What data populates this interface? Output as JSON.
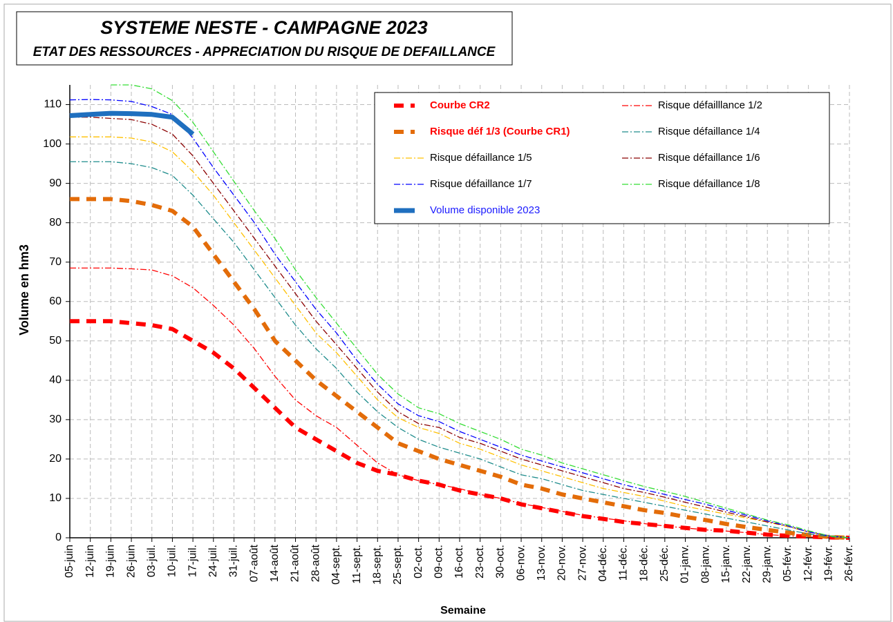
{
  "chart_data": {
    "type": "line",
    "title": "SYSTEME NESTE - CAMPAGNE  2023",
    "subtitle": "ETAT DES RESSOURCES - APPRECIATION DU RISQUE DE DEFAILLANCE",
    "y_label": "Volume en hm3",
    "x_label": "Semaine",
    "categories": [
      "05-juin",
      "12-juin",
      "19-juin",
      "26-juin",
      "03-juil.",
      "10-juil.",
      "17-juil.",
      "24-juil.",
      "31-juil.",
      "07-août",
      "14-août",
      "21-août",
      "28-août",
      "04-sept.",
      "11-sept.",
      "18-sept.",
      "25-sept.",
      "02-oct.",
      "09-oct.",
      "16-oct.",
      "23-oct.",
      "30-oct.",
      "06-nov.",
      "13-nov.",
      "20-nov.",
      "27-nov.",
      "04-déc.",
      "11-déc.",
      "18-déc.",
      "25-déc.",
      "01-janv.",
      "08-janv.",
      "15-janv.",
      "22-janv.",
      "29-janv.",
      "05-févr.",
      "12-févr.",
      "19-févr.",
      "26-févr."
    ],
    "ylim": [
      0,
      115
    ],
    "yticks": [
      0,
      10,
      20,
      30,
      40,
      50,
      60,
      70,
      80,
      90,
      100,
      110
    ],
    "grid": true,
    "series": [
      {
        "name": "Courbe CR2",
        "color": "#ff0000",
        "style": "dashed-thick",
        "label_color": "#ff0000",
        "values": [
          55,
          55,
          55,
          54.5,
          54,
          53,
          50,
          47,
          43,
          38,
          33,
          28,
          25,
          22,
          19,
          17,
          16,
          14.5,
          13.5,
          12,
          11,
          10,
          8.5,
          7.5,
          6.5,
          5.5,
          4.8,
          4,
          3.5,
          3,
          2.5,
          2,
          1.8,
          1.3,
          0.8,
          0.5,
          0.3,
          0.1,
          0
        ]
      },
      {
        "name": "Risque défailllance 1/2",
        "color": "#ff0000",
        "style": "dashdot",
        "values": [
          68.5,
          68.5,
          68.5,
          68.3,
          68,
          66.5,
          63.5,
          59,
          54,
          48,
          41,
          35,
          31,
          28,
          23.5,
          19,
          16,
          14.5,
          13.5,
          12.5,
          11,
          10,
          8.7,
          7.7,
          6.7,
          5.7,
          5,
          4.3,
          3.6,
          3,
          2.5,
          2,
          1.7,
          1.3,
          0.8,
          0.5,
          0.2,
          0.05,
          0
        ]
      },
      {
        "name": "Risque déf 1/3 (Courbe CR1)",
        "color": "#e36c09",
        "style": "dashed-thick",
        "label_color": "#ff0000",
        "values": [
          86,
          86,
          86,
          85.5,
          84.5,
          83,
          79,
          72,
          65,
          58,
          50,
          45,
          40,
          36,
          32,
          28,
          24,
          22,
          20,
          18.5,
          17,
          15.5,
          13.5,
          12.5,
          11,
          10,
          9,
          8,
          7,
          6.3,
          5.3,
          4.5,
          3.5,
          2.7,
          2,
          1.3,
          0.7,
          0.2,
          0
        ]
      },
      {
        "name": "Risque défaillance 1/4",
        "color": "#1e8c8c",
        "style": "dashdot",
        "values": [
          95.5,
          95.5,
          95.5,
          95,
          94,
          92,
          87,
          81,
          75,
          68,
          61,
          54,
          48,
          43,
          37,
          32,
          28,
          25,
          23,
          21.5,
          20,
          18,
          16,
          15,
          13.5,
          12,
          11,
          10,
          9,
          8,
          7,
          6,
          5,
          4,
          3,
          2,
          1,
          0.3,
          0
        ]
      },
      {
        "name": "Risque défaillance 1/5",
        "color": "#ffc000",
        "style": "dashdot",
        "values": [
          101.8,
          101.8,
          101.8,
          101.5,
          100.5,
          98,
          93,
          87,
          80,
          73,
          66,
          59,
          52,
          47,
          41,
          35,
          30.5,
          28,
          26.5,
          24,
          22.5,
          20.5,
          18.5,
          17,
          15.5,
          14,
          12.5,
          11.5,
          10.5,
          9.3,
          8,
          7,
          6,
          5,
          4,
          2.8,
          1.5,
          0.5,
          0
        ]
      },
      {
        "name": "Risque défaillance 1/6",
        "color": "#8b0000",
        "style": "dashdot",
        "values": [
          106.8,
          106.8,
          106.5,
          106.2,
          105,
          102.5,
          97,
          90,
          83,
          76,
          69,
          62,
          55,
          49,
          43,
          37,
          32,
          29,
          28,
          25.5,
          24,
          22,
          20,
          18.5,
          17,
          15.5,
          14,
          12.5,
          11.5,
          10.3,
          9,
          7.8,
          6.5,
          5.3,
          4,
          3,
          1.5,
          0.5,
          0
        ]
      },
      {
        "name": "Risque défaillance 1/7",
        "color": "#0000ff",
        "style": "dashdot",
        "values": [
          111.2,
          111.3,
          111.2,
          110.8,
          109.5,
          107.5,
          101.5,
          94,
          87,
          80,
          72,
          65,
          58,
          52,
          45,
          39,
          34,
          31,
          29.5,
          27,
          25,
          23,
          21,
          19.5,
          18,
          16.5,
          15,
          13.5,
          12.2,
          11,
          9.7,
          8.5,
          7,
          5.7,
          4.3,
          3,
          1.5,
          0.5,
          0
        ]
      },
      {
        "name": "Risque défaillance 1/8",
        "color": "#33dd33",
        "style": "dashdot",
        "values": [
          null,
          null,
          115,
          115,
          114,
          111,
          105.5,
          98,
          90.5,
          83,
          76,
          68,
          61,
          54.5,
          48,
          41.5,
          36.5,
          33,
          31.5,
          29,
          27,
          25,
          22.5,
          21,
          19,
          17.5,
          16,
          14.5,
          13,
          11.8,
          10.5,
          9,
          7.5,
          6,
          4.5,
          3.3,
          1.8,
          0.5,
          0
        ]
      },
      {
        "name": "Volume disponible 2023",
        "color": "#1f6fbf",
        "style": "solid-thick",
        "label_color": "#1a1aff",
        "values": [
          107.2,
          107.5,
          107.8,
          107.7,
          107.5,
          106.8,
          102.5,
          null,
          null,
          null,
          null,
          null,
          null,
          null,
          null,
          null,
          null,
          null,
          null,
          null,
          null,
          null,
          null,
          null,
          null,
          null,
          null,
          null,
          null,
          null,
          null,
          null,
          null,
          null,
          null,
          null,
          null,
          null,
          null
        ]
      }
    ]
  }
}
